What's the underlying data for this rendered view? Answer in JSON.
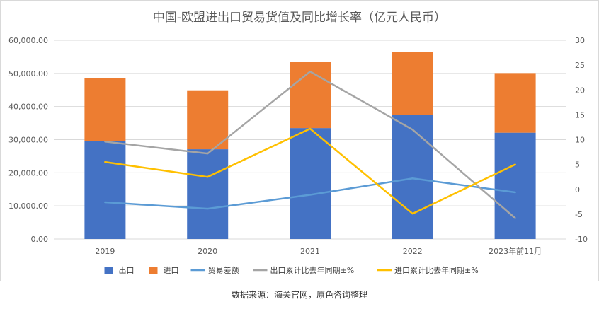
{
  "source_note": "数据来源：海关官网，原色咨询整理",
  "chart_data": {
    "type": "bar",
    "title": "中国-欧盟进出口贸易货值及同比增长率（亿元人民币）",
    "categories": [
      "2019",
      "2020",
      "2021",
      "2022",
      "2023年前11月"
    ],
    "left_axis": {
      "ylim": [
        0,
        60000
      ],
      "ticks": [
        "0.00",
        "10,000.00",
        "20,000.00",
        "30,000.00",
        "40,000.00",
        "50,000.00",
        "60,000.00"
      ]
    },
    "right_axis": {
      "ylim": [
        -10,
        30
      ],
      "ticks": [
        "-10",
        "-5",
        "0",
        "5",
        "10",
        "15",
        "20",
        "25",
        "30"
      ]
    },
    "grid": true,
    "legend_position": "bottom",
    "series": [
      {
        "name": "出口",
        "kind": "bar",
        "stack": "trade",
        "axis": "left",
        "color": "#4472C4",
        "values": [
          29600,
          27100,
          33500,
          37400,
          32100
        ]
      },
      {
        "name": "进口",
        "kind": "bar",
        "stack": "trade",
        "axis": "left",
        "color": "#ED7D31",
        "values": [
          19000,
          17800,
          19900,
          19000,
          18000
        ]
      },
      {
        "name": "贸易差额",
        "kind": "line",
        "axis": "right",
        "color": "#5B9BD5",
        "values": [
          -2.6,
          -3.9,
          -1.1,
          2.2,
          -0.6
        ]
      },
      {
        "name": "出口累计比去年同期±%",
        "kind": "line",
        "axis": "right",
        "color": "#A5A5A5",
        "values": [
          9.6,
          7.2,
          23.7,
          12.0,
          -5.8
        ]
      },
      {
        "name": "进口累计比去年同期±%",
        "kind": "line",
        "axis": "right",
        "color": "#FFC000",
        "values": [
          5.5,
          2.5,
          12.2,
          -4.9,
          5.0
        ]
      }
    ]
  }
}
